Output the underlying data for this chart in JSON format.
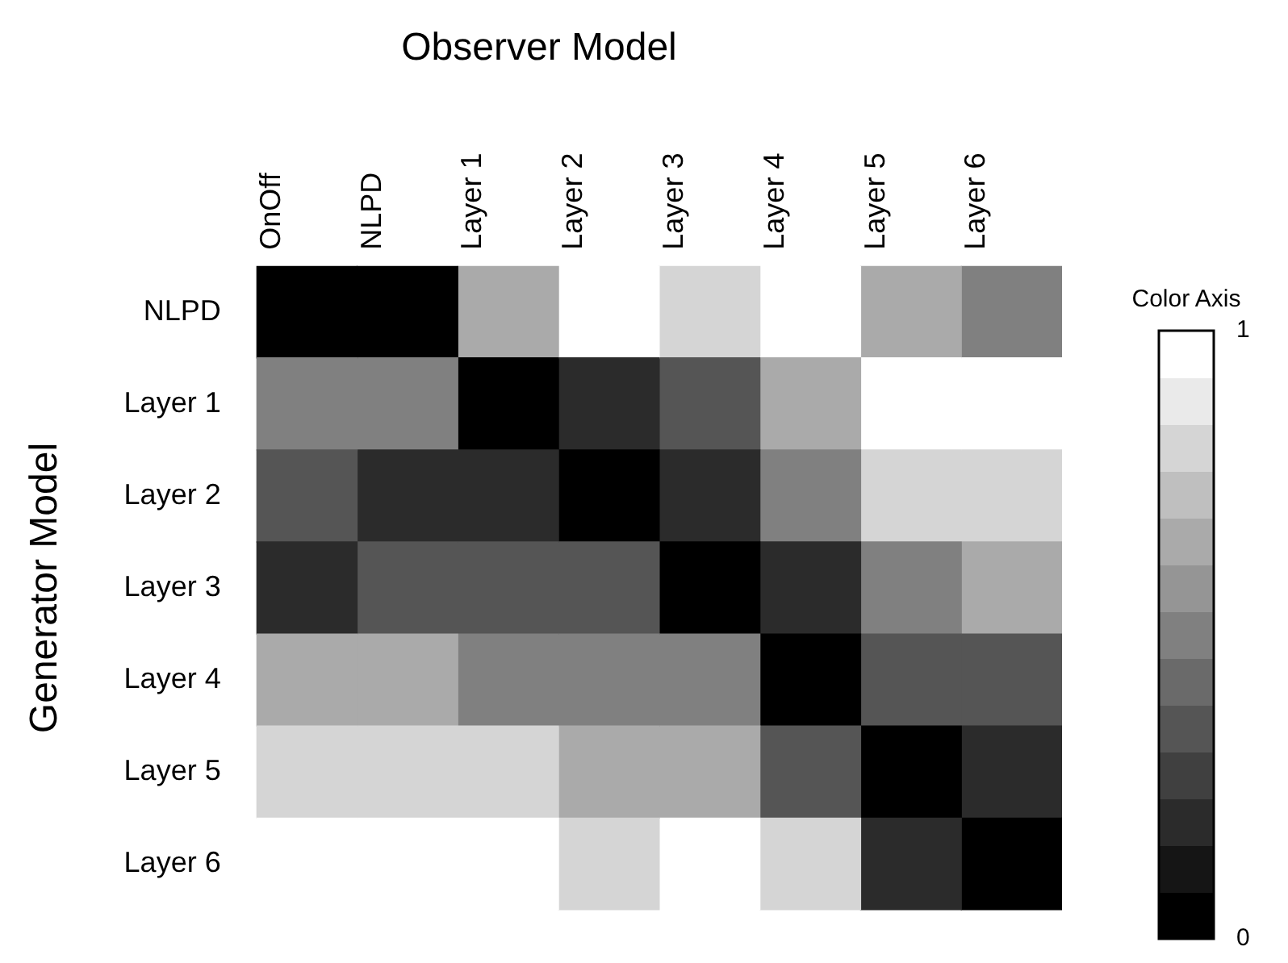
{
  "chart_data": {
    "type": "heatmap",
    "title": "Observer Model",
    "ylabel": "Generator Model",
    "clabel": "Color Axis",
    "categories": [
      "OnOff",
      "NLPD",
      "Layer 1",
      "Layer 2",
      "Layer 3",
      "Layer 4",
      "Layer 5",
      "Layer 6"
    ],
    "y_categories": [
      "NLPD",
      "Layer 1",
      "Layer 2",
      "Layer 3",
      "Layer 4",
      "Layer 5",
      "Layer 6"
    ],
    "cells": [
      [
        0,
        0,
        0.67,
        1,
        0.83,
        1,
        0.67,
        0.5
      ],
      [
        0.5,
        0.5,
        0,
        0.17,
        0.33,
        0.67,
        1,
        1
      ],
      [
        0.33,
        0.17,
        0.17,
        0,
        0.17,
        0.5,
        0.83,
        0.83
      ],
      [
        0.17,
        0.33,
        0.33,
        0.33,
        0,
        0.17,
        0.5,
        0.67
      ],
      [
        0.67,
        0.67,
        0.5,
        0.5,
        0.5,
        0,
        0.33,
        0.33
      ],
      [
        0.83,
        0.83,
        0.83,
        0.67,
        0.67,
        0.33,
        0,
        0.17
      ],
      [
        1,
        1,
        1,
        0.83,
        1,
        0.83,
        0.17,
        0
      ]
    ],
    "clim": [
      0,
      1
    ],
    "cticks": [
      0,
      1
    ]
  }
}
